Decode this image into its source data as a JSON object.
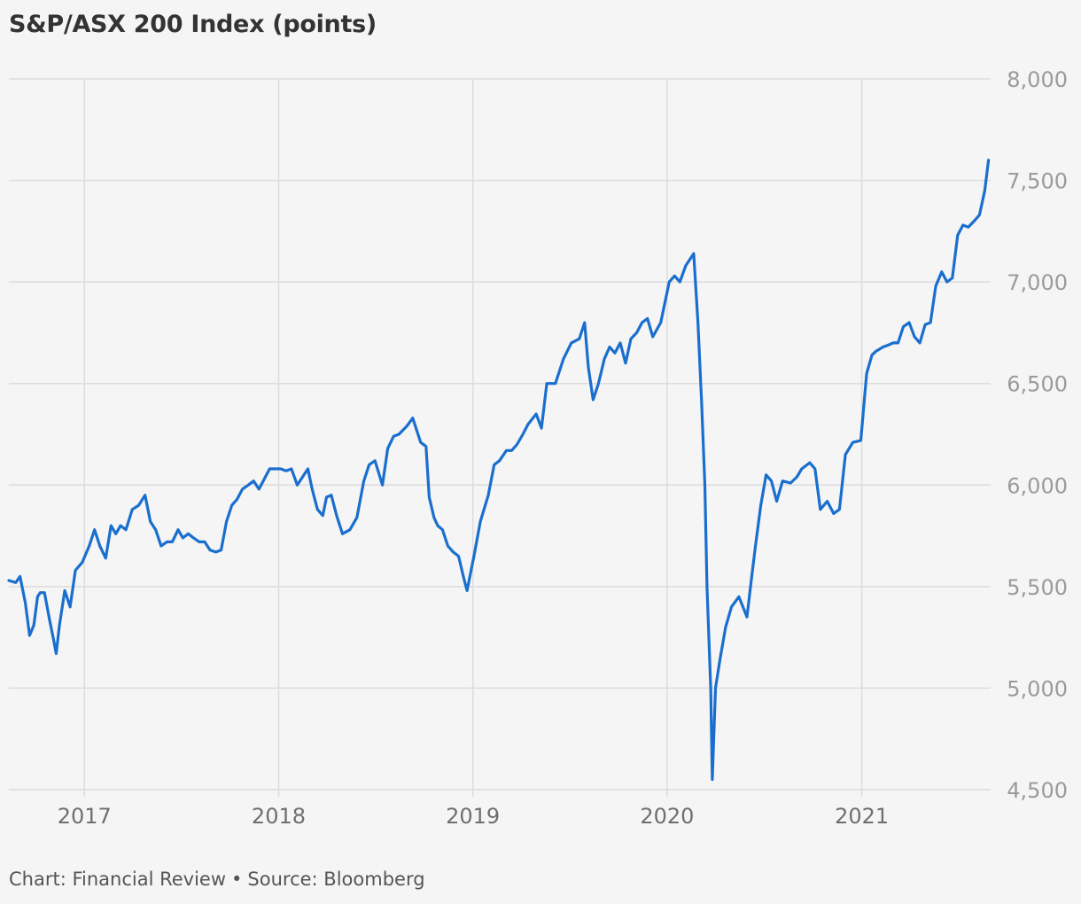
{
  "title": "S&P/ASX 200 Index (points)",
  "footer": {
    "credit": "Chart: Financial Review",
    "separator": "•",
    "source": "Source: Bloomberg"
  },
  "colors": {
    "line": "#1a6fce",
    "grid": "#dcdcdc",
    "background": "#f5f5f5"
  },
  "chart_data": {
    "type": "line",
    "title": "S&P/ASX 200 Index (points)",
    "xlabel": "",
    "ylabel": "",
    "ylim": [
      4500,
      8000
    ],
    "xlim": [
      "2016-08-12",
      "2021-08-31"
    ],
    "y_axis_position": "right",
    "grid": true,
    "y_ticks": [
      4500,
      5000,
      5500,
      6000,
      6500,
      7000,
      7500,
      8000
    ],
    "y_tick_labels": [
      "4,500",
      "5,000",
      "5,500",
      "6,000",
      "6,500",
      "7,000",
      "7,500",
      "8,000"
    ],
    "x_ticks": [
      "2017-01-01",
      "2018-01-01",
      "2019-01-01",
      "2020-01-01",
      "2021-01-01"
    ],
    "x_tick_labels": [
      "2017",
      "2018",
      "2019",
      "2020",
      "2021"
    ],
    "series": [
      {
        "x": [
          "2016-08-12",
          "2016-08-25",
          "2016-09-02",
          "2016-09-12",
          "2016-09-20",
          "2016-09-28",
          "2016-10-05",
          "2016-10-10",
          "2016-10-18",
          "2016-10-28",
          "2016-11-04",
          "2016-11-09",
          "2016-11-15",
          "2016-11-25",
          "2016-12-05",
          "2016-12-15",
          "2016-12-28",
          "2017-01-10",
          "2017-01-20",
          "2017-01-30",
          "2017-02-10",
          "2017-02-20",
          "2017-03-01",
          "2017-03-10",
          "2017-03-20",
          "2017-04-01",
          "2017-04-13",
          "2017-04-25",
          "2017-05-05",
          "2017-05-15",
          "2017-05-25",
          "2017-06-05",
          "2017-06-15",
          "2017-06-26",
          "2017-07-05",
          "2017-07-15",
          "2017-07-25",
          "2017-08-05",
          "2017-08-15",
          "2017-08-25",
          "2017-09-05",
          "2017-09-15",
          "2017-09-25",
          "2017-10-05",
          "2017-10-15",
          "2017-10-25",
          "2017-11-05",
          "2017-11-15",
          "2017-11-25",
          "2017-12-05",
          "2017-12-15",
          "2018-01-05",
          "2018-01-15",
          "2018-01-25",
          "2018-02-05",
          "2018-02-15",
          "2018-02-25",
          "2018-03-05",
          "2018-03-15",
          "2018-03-25",
          "2018-04-01",
          "2018-04-10",
          "2018-04-20",
          "2018-05-01",
          "2018-05-15",
          "2018-05-28",
          "2018-06-10",
          "2018-06-20",
          "2018-07-01",
          "2018-07-15",
          "2018-07-25",
          "2018-08-05",
          "2018-08-15",
          "2018-08-30",
          "2018-09-10",
          "2018-09-25",
          "2018-10-05",
          "2018-10-11",
          "2018-10-20",
          "2018-10-27",
          "2018-11-05",
          "2018-11-15",
          "2018-11-25",
          "2018-12-05",
          "2018-12-15",
          "2018-12-21",
          "2019-01-03",
          "2019-01-15",
          "2019-01-30",
          "2019-02-10",
          "2019-02-20",
          "2019-03-05",
          "2019-03-15",
          "2019-03-25",
          "2019-04-05",
          "2019-04-15",
          "2019-04-30",
          "2019-05-10",
          "2019-05-20",
          "2019-06-05",
          "2019-06-20",
          "2019-07-05",
          "2019-07-20",
          "2019-07-30",
          "2019-08-06",
          "2019-08-15",
          "2019-08-25",
          "2019-09-05",
          "2019-09-15",
          "2019-09-25",
          "2019-10-05",
          "2019-10-15",
          "2019-10-25",
          "2019-11-05",
          "2019-11-15",
          "2019-11-25",
          "2019-12-05",
          "2019-12-20",
          "2020-01-05",
          "2020-01-15",
          "2020-01-25",
          "2020-02-05",
          "2020-02-20",
          "2020-02-28",
          "2020-03-06",
          "2020-03-12",
          "2020-03-16",
          "2020-03-23",
          "2020-03-26",
          "2020-04-01",
          "2020-04-10",
          "2020-04-20",
          "2020-05-01",
          "2020-05-15",
          "2020-05-30",
          "2020-06-08",
          "2020-06-15",
          "2020-06-25",
          "2020-07-05",
          "2020-07-15",
          "2020-07-25",
          "2020-08-05",
          "2020-08-20",
          "2020-09-01",
          "2020-09-10",
          "2020-09-25",
          "2020-10-05",
          "2020-10-15",
          "2020-10-28",
          "2020-11-09",
          "2020-11-20",
          "2020-12-01",
          "2020-12-15",
          "2020-12-30",
          "2021-01-10",
          "2021-01-20",
          "2021-01-28",
          "2021-02-10",
          "2021-02-20",
          "2021-03-01",
          "2021-03-10",
          "2021-03-20",
          "2021-03-31",
          "2021-04-10",
          "2021-04-20",
          "2021-04-30",
          "2021-05-10",
          "2021-05-20",
          "2021-05-31",
          "2021-06-10",
          "2021-06-20",
          "2021-06-30",
          "2021-07-10",
          "2021-07-20",
          "2021-07-31",
          "2021-08-10",
          "2021-08-20",
          "2021-08-27"
        ],
        "values": [
          5530,
          5520,
          5550,
          5420,
          5260,
          5310,
          5450,
          5470,
          5470,
          5330,
          5240,
          5170,
          5310,
          5480,
          5400,
          5580,
          5620,
          5700,
          5780,
          5700,
          5640,
          5800,
          5760,
          5800,
          5780,
          5880,
          5900,
          5950,
          5820,
          5780,
          5700,
          5720,
          5720,
          5780,
          5740,
          5760,
          5740,
          5720,
          5720,
          5680,
          5670,
          5680,
          5820,
          5900,
          5930,
          5980,
          6000,
          6020,
          5980,
          6030,
          6080,
          6080,
          6070,
          6080,
          6000,
          6040,
          6080,
          5980,
          5880,
          5850,
          5940,
          5950,
          5850,
          5760,
          5780,
          5840,
          6020,
          6100,
          6120,
          6000,
          6180,
          6240,
          6250,
          6290,
          6330,
          6210,
          6190,
          5940,
          5840,
          5800,
          5780,
          5700,
          5670,
          5650,
          5540,
          5480,
          5650,
          5820,
          5950,
          6100,
          6120,
          6170,
          6170,
          6200,
          6250,
          6300,
          6350,
          6280,
          6500,
          6500,
          6620,
          6700,
          6720,
          6800,
          6580,
          6420,
          6500,
          6620,
          6680,
          6650,
          6700,
          6600,
          6720,
          6750,
          6800,
          6820,
          6730,
          6800,
          7000,
          7030,
          7000,
          7080,
          7140,
          6800,
          6400,
          6000,
          5500,
          5000,
          4550,
          5000,
          5150,
          5300,
          5400,
          5450,
          5350,
          5550,
          5700,
          5900,
          6050,
          6020,
          5920,
          6020,
          6010,
          6040,
          6080,
          6110,
          6080,
          5880,
          5920,
          5860,
          5880,
          6150,
          6210,
          6220,
          6550,
          6640,
          6660,
          6680,
          6690,
          6700,
          6700,
          6780,
          6800,
          6730,
          6700,
          6790,
          6800,
          6980,
          7050,
          7000,
          7020,
          7230,
          7280,
          7270,
          7300,
          7330,
          7450,
          7600
        ]
      }
    ]
  }
}
